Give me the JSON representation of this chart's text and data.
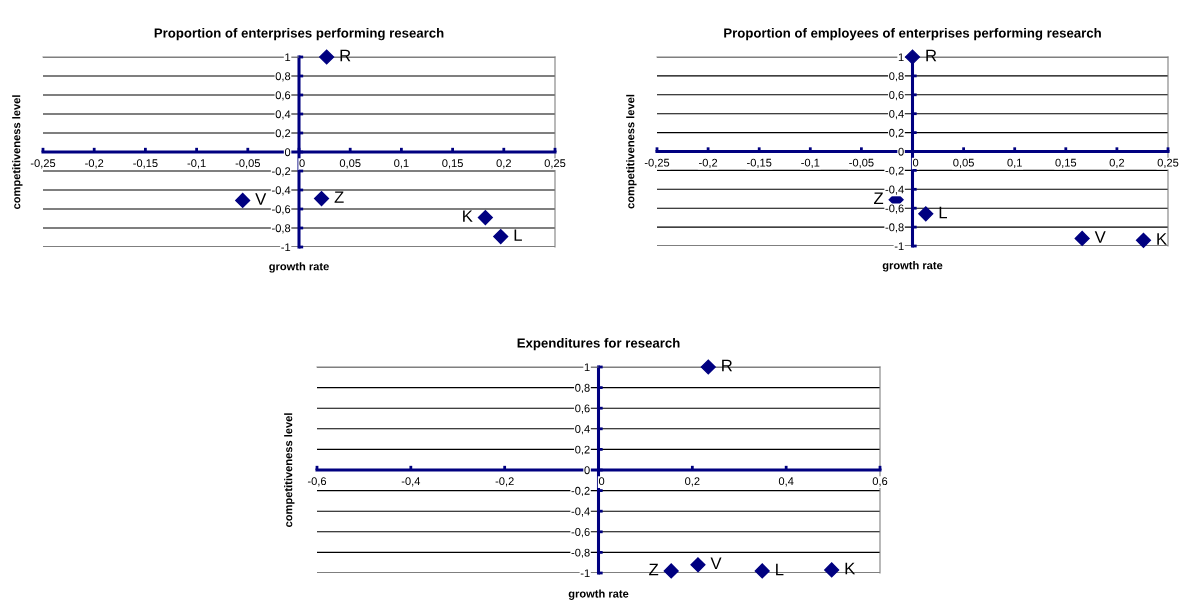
{
  "chart_data": [
    {
      "type": "scatter",
      "title": "Proportion of enterprises performing research",
      "xlabel": "growth rate",
      "ylabel": "competitiveness level",
      "x": [
        0.027,
        -0.055,
        0.022,
        0.182,
        0.197
      ],
      "series": [
        {
          "color": "#000080",
          "values": [
            1,
            -0.51,
            -0.49,
            -0.69,
            -0.89
          ]
        }
      ],
      "annotations": [
        {
          "text": "R",
          "x": 0.027,
          "y": 1
        },
        {
          "text": "V",
          "x": -0.055,
          "y": -0.51
        },
        {
          "text": "Z",
          "x": 0.022,
          "y": -0.49
        },
        {
          "text": "K",
          "x": 0.182,
          "y": -0.69
        },
        {
          "text": "L",
          "x": 0.197,
          "y": -0.89
        }
      ],
      "xlim": [
        -0.25,
        0.25
      ],
      "ylim": [
        -1,
        1
      ],
      "xticks": [
        {
          "value": -0.25,
          "label": "-0,25"
        },
        {
          "value": -0.2,
          "label": "-0,2"
        },
        {
          "value": -0.15,
          "label": "-0,15"
        },
        {
          "value": -0.1,
          "label": "-0,1"
        },
        {
          "value": -0.05,
          "label": "-0,05"
        },
        0,
        {
          "value": 0.05,
          "label": "0,05"
        },
        {
          "value": 0.1,
          "label": "0,1"
        },
        {
          "value": 0.15,
          "label": "0,15"
        },
        {
          "value": 0.2,
          "label": "0,2"
        },
        {
          "value": 0.25,
          "label": "0,25"
        }
      ],
      "yticks": [
        -1,
        {
          "value": -0.8,
          "label": "-0,8"
        },
        {
          "value": -0.6,
          "label": "-0,6"
        },
        {
          "value": -0.4,
          "label": "-0,4"
        },
        {
          "value": -0.2,
          "label": "-0,2"
        },
        0,
        {
          "value": 0.2,
          "label": "0,2"
        },
        {
          "value": 0.4,
          "label": "0,4"
        },
        {
          "value": 0.6,
          "label": "0,6"
        },
        {
          "value": 0.8,
          "label": "0,8"
        },
        1
      ],
      "grid": "y",
      "marker": "diamond"
    },
    {
      "type": "scatter",
      "title": "Proportion of employees of enterprises performing research",
      "xlabel": "growth rate",
      "ylabel": "competitiveness level",
      "x": [
        0,
        -0.016,
        0.013,
        0.166,
        0.226
      ],
      "series": [
        {
          "color": "#000080",
          "values": [
            1,
            -0.51,
            -0.66,
            -0.92,
            -0.94
          ]
        }
      ],
      "annotations": [
        {
          "text": "R",
          "x": 0,
          "y": 1
        },
        {
          "text": "Z",
          "x": -0.016,
          "y": -0.51
        },
        {
          "text": "L",
          "x": 0.013,
          "y": -0.66
        },
        {
          "text": "V",
          "x": 0.166,
          "y": -0.92
        },
        {
          "text": "K",
          "x": 0.226,
          "y": -0.94
        }
      ],
      "xlim": [
        -0.25,
        0.25
      ],
      "ylim": [
        -1,
        1
      ],
      "xticks": [
        {
          "value": -0.25,
          "label": "-0,25"
        },
        {
          "value": -0.2,
          "label": "-0,2"
        },
        {
          "value": -0.15,
          "label": "-0,15"
        },
        {
          "value": -0.1,
          "label": "-0,1"
        },
        {
          "value": -0.05,
          "label": "-0,05"
        },
        0,
        {
          "value": 0.05,
          "label": "0,05"
        },
        {
          "value": 0.1,
          "label": "0,1"
        },
        {
          "value": 0.15,
          "label": "0,15"
        },
        {
          "value": 0.2,
          "label": "0,2"
        },
        {
          "value": 0.25,
          "label": "0,25"
        }
      ],
      "yticks": [
        -1,
        {
          "value": -0.8,
          "label": "-0,8"
        },
        {
          "value": -0.6,
          "label": "-0,6"
        },
        {
          "value": -0.4,
          "label": "-0,4"
        },
        {
          "value": -0.2,
          "label": "-0,2"
        },
        0,
        {
          "value": 0.2,
          "label": "0,2"
        },
        {
          "value": 0.4,
          "label": "0,4"
        },
        {
          "value": 0.6,
          "label": "0,6"
        },
        {
          "value": 0.8,
          "label": "0,8"
        },
        1
      ],
      "grid": "y",
      "marker": "diamond"
    },
    {
      "type": "scatter",
      "title": "Expenditures for research",
      "xlabel": "growth rate",
      "ylabel": "competitiveness level",
      "x": [
        0.234,
        0.155,
        0.212,
        0.349,
        0.497
      ],
      "series": [
        {
          "color": "#000080",
          "values": [
            1,
            -0.98,
            -0.92,
            -0.98,
            -0.97
          ]
        }
      ],
      "annotations": [
        {
          "text": "R",
          "x": 0.234,
          "y": 1
        },
        {
          "text": "Z",
          "x": 0.155,
          "y": -0.98
        },
        {
          "text": "V",
          "x": 0.212,
          "y": -0.92
        },
        {
          "text": "L",
          "x": 0.349,
          "y": -0.98
        },
        {
          "text": "K",
          "x": 0.497,
          "y": -0.97
        }
      ],
      "xlim": [
        -0.6,
        0.6
      ],
      "ylim": [
        -1,
        1
      ],
      "xticks": [
        {
          "value": -0.6,
          "label": "-0,6"
        },
        {
          "value": -0.4,
          "label": "-0,4"
        },
        {
          "value": -0.2,
          "label": "-0,2"
        },
        0,
        {
          "value": 0.2,
          "label": "0,2"
        },
        {
          "value": 0.4,
          "label": "0,4"
        },
        {
          "value": 0.6,
          "label": "0,6"
        }
      ],
      "yticks": [
        -1,
        {
          "value": -0.8,
          "label": "-0,8"
        },
        {
          "value": -0.6,
          "label": "-0,6"
        },
        {
          "value": -0.4,
          "label": "-0,4"
        },
        {
          "value": -0.2,
          "label": "-0,2"
        },
        0,
        {
          "value": 0.2,
          "label": "0,2"
        },
        {
          "value": 0.4,
          "label": "0,4"
        },
        {
          "value": 0.6,
          "label": "0,6"
        },
        {
          "value": 0.8,
          "label": "0,8"
        },
        1
      ],
      "grid": "y",
      "marker": "diamond"
    }
  ]
}
